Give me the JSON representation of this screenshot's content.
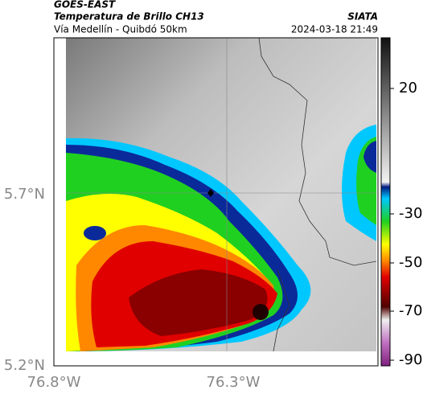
{
  "header": {
    "source": "GOES-EAST",
    "title": "Temperatura de Brillo CH13",
    "subtitle": "Vía Medellín - Quibdó 50km",
    "agency": "SIATA",
    "timestamp": "2024-03-18 21:49"
  },
  "map": {
    "lat_labels": [
      "5.7°N",
      "5.2°N"
    ],
    "lon_labels": [
      "76.8°W",
      "76.3°W"
    ]
  },
  "colorbar": {
    "ticks": [
      "20",
      "-30",
      "-50",
      "-70",
      "-90"
    ]
  }
}
